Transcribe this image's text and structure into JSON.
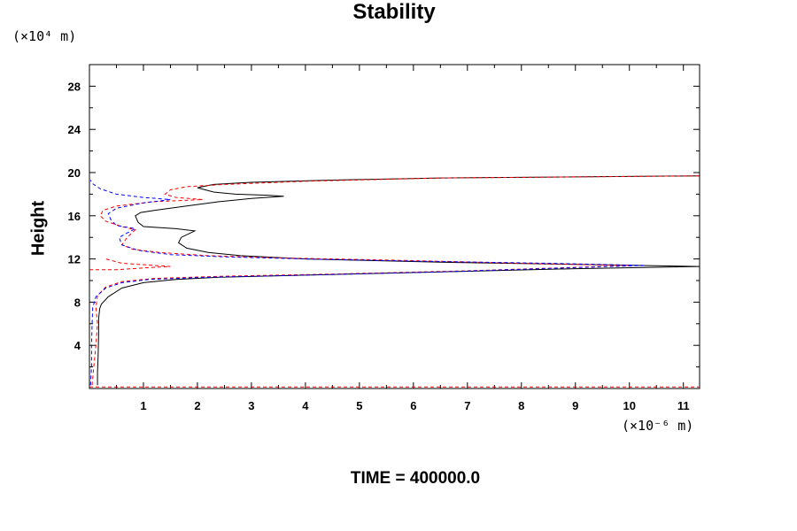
{
  "chart_data": {
    "type": "line",
    "title": "Stability",
    "ylabel": "Height",
    "y_unit": "(×10⁴ m)",
    "x_unit": "(×10⁻⁶ m)",
    "footer": "TIME = 400000.0",
    "xlim": [
      0,
      11.3
    ],
    "ylim": [
      0,
      30
    ],
    "xticks": [
      1,
      2,
      3,
      4,
      5,
      6,
      7,
      8,
      9,
      10,
      11
    ],
    "yticks": [
      4,
      8,
      12,
      16,
      20,
      24,
      28
    ],
    "colors": {
      "black": "#000000",
      "red": "#ff0000",
      "blue": "#0000ff"
    },
    "series": [
      {
        "style": "solid",
        "color": "#000000",
        "points": [
          [
            0.15,
            0.3
          ],
          [
            0.15,
            1.5
          ],
          [
            0.16,
            3
          ],
          [
            0.17,
            5
          ],
          [
            0.17,
            6.5
          ],
          [
            0.19,
            7.4
          ],
          [
            0.22,
            7.8
          ],
          [
            0.35,
            8.5
          ],
          [
            0.6,
            9.3
          ],
          [
            1.0,
            9.8
          ],
          [
            1.6,
            10.1
          ],
          [
            2.4,
            10.3
          ],
          [
            4.0,
            10.5
          ],
          [
            6.5,
            10.8
          ],
          [
            9.0,
            11.1
          ],
          [
            11.3,
            11.3
          ],
          [
            9.0,
            11.5
          ],
          [
            6.5,
            11.7
          ],
          [
            4.0,
            12.0
          ],
          [
            2.8,
            12.3
          ],
          [
            2.2,
            12.6
          ],
          [
            1.8,
            13.0
          ],
          [
            1.65,
            13.5
          ],
          [
            1.7,
            14.0
          ],
          [
            1.95,
            14.6
          ],
          [
            1.6,
            14.8
          ],
          [
            1.0,
            15.0
          ],
          [
            0.9,
            15.4
          ],
          [
            0.85,
            16.0
          ],
          [
            0.95,
            16.3
          ],
          [
            1.2,
            16.5
          ],
          [
            1.8,
            16.9
          ],
          [
            2.4,
            17.3
          ],
          [
            3.0,
            17.6
          ],
          [
            3.6,
            17.8
          ],
          [
            3.3,
            17.9
          ],
          [
            2.7,
            18.0
          ],
          [
            2.3,
            18.2
          ],
          [
            2.0,
            18.6
          ],
          [
            2.3,
            18.9
          ],
          [
            3.0,
            19.1
          ],
          [
            4.5,
            19.3
          ],
          [
            6.5,
            19.5
          ],
          [
            9.0,
            19.6
          ],
          [
            11.3,
            19.7
          ]
        ]
      },
      {
        "style": "dashed",
        "color": "#ff0000",
        "points": [
          [
            0.05,
            0.3
          ],
          [
            0.08,
            2
          ],
          [
            0.12,
            4
          ],
          [
            0.15,
            6
          ],
          [
            0.12,
            7.5
          ],
          [
            0.15,
            8.6
          ],
          [
            0.3,
            9.4
          ],
          [
            0.6,
            9.9
          ],
          [
            1.2,
            10.2
          ],
          [
            2.5,
            10.4
          ],
          [
            4.5,
            10.6
          ],
          [
            7.0,
            10.9
          ],
          [
            9.5,
            11.3
          ],
          [
            10.0,
            11.4
          ],
          [
            8.0,
            11.6
          ],
          [
            5.5,
            11.9
          ],
          [
            3.5,
            12.1
          ],
          [
            2.2,
            12.3
          ],
          [
            1.3,
            12.6
          ],
          [
            0.8,
            12.9
          ],
          [
            0.6,
            13.3
          ],
          [
            0.7,
            14.0
          ],
          [
            0.85,
            14.7
          ],
          [
            0.6,
            15.0
          ],
          [
            0.3,
            15.5
          ],
          [
            0.2,
            16.0
          ],
          [
            0.25,
            16.5
          ],
          [
            0.5,
            16.9
          ],
          [
            1.2,
            17.3
          ],
          [
            2.1,
            17.5
          ],
          [
            1.6,
            17.7
          ],
          [
            1.4,
            18.0
          ],
          [
            1.5,
            18.4
          ],
          [
            1.8,
            18.7
          ],
          [
            2.5,
            18.9
          ],
          [
            4.0,
            19.2
          ],
          [
            6.5,
            19.5
          ],
          [
            9.0,
            19.6
          ],
          [
            11.3,
            19.7
          ]
        ]
      },
      {
        "style": "dashed",
        "color": "#0000ff",
        "points": [
          [
            0.02,
            0.3
          ],
          [
            0.04,
            2
          ],
          [
            0.04,
            4
          ],
          [
            0.05,
            6
          ],
          [
            0.06,
            7.5
          ],
          [
            0.12,
            8.5
          ],
          [
            0.3,
            9.3
          ],
          [
            0.6,
            9.8
          ],
          [
            1.1,
            10.1
          ],
          [
            2.2,
            10.3
          ],
          [
            4.0,
            10.5
          ],
          [
            6.5,
            10.8
          ],
          [
            9.0,
            11.2
          ],
          [
            10.3,
            11.4
          ],
          [
            8.5,
            11.6
          ],
          [
            6.0,
            11.8
          ],
          [
            4.0,
            12.0
          ],
          [
            2.5,
            12.2
          ],
          [
            1.5,
            12.4
          ],
          [
            0.9,
            12.8
          ],
          [
            0.6,
            13.3
          ],
          [
            0.55,
            14.0
          ],
          [
            0.85,
            14.8
          ],
          [
            0.5,
            15.1
          ],
          [
            0.4,
            15.6
          ],
          [
            0.35,
            16.2
          ],
          [
            0.5,
            16.7
          ],
          [
            1.0,
            17.2
          ],
          [
            1.5,
            17.5
          ],
          [
            1.0,
            17.7
          ],
          [
            0.5,
            18.0
          ],
          [
            0.2,
            18.5
          ],
          [
            0.05,
            19.0
          ],
          [
            0.02,
            19.3
          ]
        ]
      },
      {
        "style": "dashed",
        "color": "#ff0000",
        "points": [
          [
            0.0,
            11.0
          ],
          [
            0.5,
            11.0
          ],
          [
            1.1,
            11.2
          ],
          [
            1.5,
            11.3
          ],
          [
            1.2,
            11.4
          ],
          [
            0.6,
            11.6
          ],
          [
            0.3,
            12.0
          ]
        ]
      },
      {
        "style": "dashed",
        "color": "#ff0000",
        "points": [
          [
            0.0,
            0.15
          ],
          [
            11.3,
            0.15
          ]
        ]
      }
    ]
  }
}
